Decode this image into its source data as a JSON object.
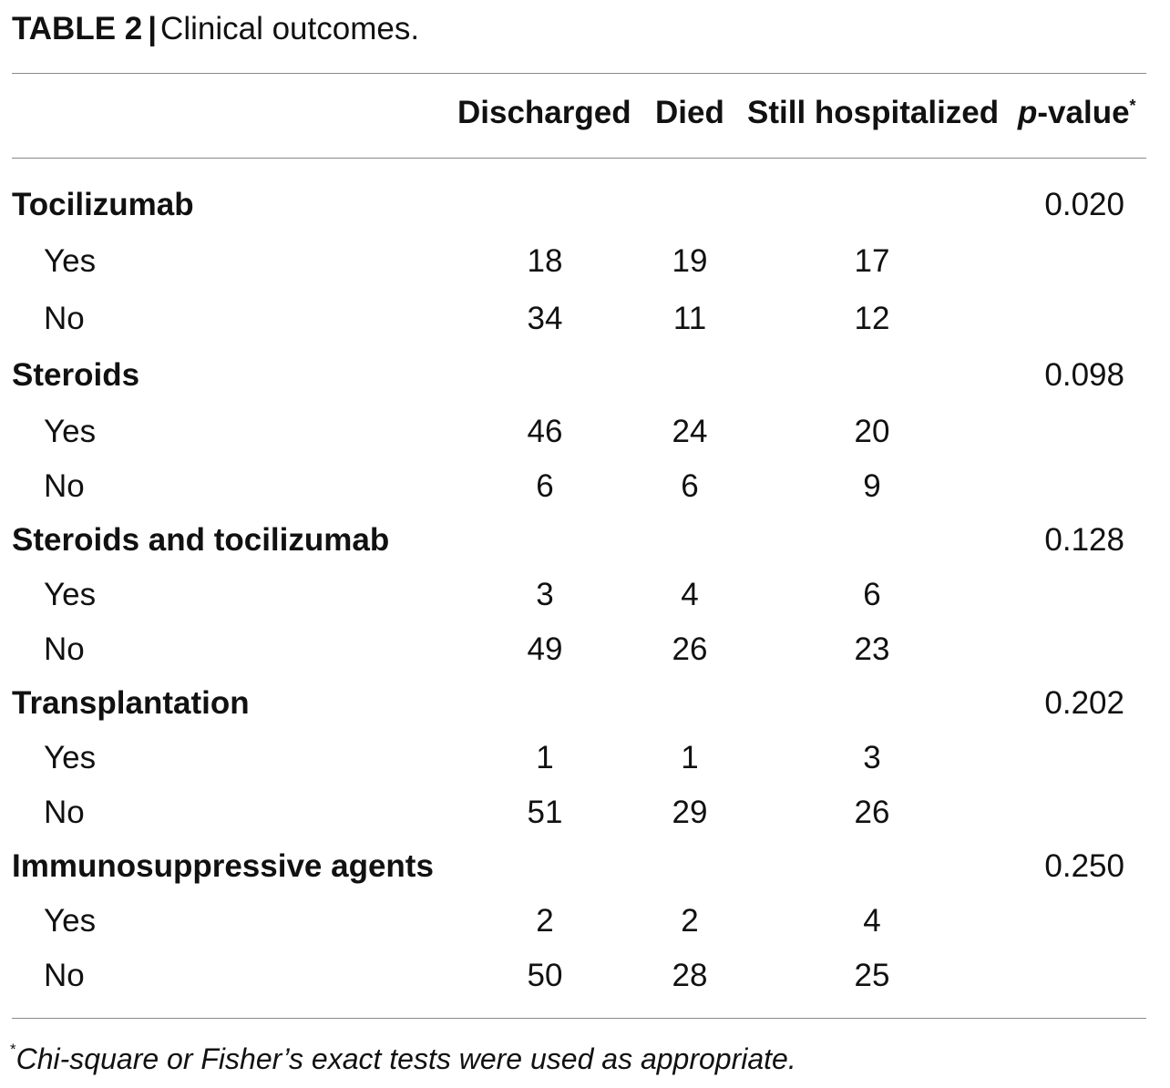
{
  "caption": {
    "label": "TABLE 2",
    "separator": "|",
    "title": "Clinical outcomes."
  },
  "columns": {
    "discharged": "Discharged",
    "died": "Died",
    "still_hospitalized": "Still hospitalized",
    "pvalue_p": "p",
    "pvalue_rest": "-value",
    "pvalue_mark": "*"
  },
  "groups": [
    {
      "name": "Tocilizumab",
      "pvalue": "0.020",
      "rows": [
        {
          "label": "Yes",
          "discharged": "18",
          "died": "19",
          "still": "17"
        },
        {
          "label": "No",
          "discharged": "34",
          "died": "11",
          "still": "12"
        }
      ]
    },
    {
      "name": "Steroids",
      "pvalue": "0.098",
      "rows": [
        {
          "label": "Yes",
          "discharged": "46",
          "died": "24",
          "still": "20"
        },
        {
          "label": "No",
          "discharged": "6",
          "died": "6",
          "still": "9"
        }
      ]
    },
    {
      "name": "Steroids and tocilizumab",
      "pvalue": "0.128",
      "rows": [
        {
          "label": "Yes",
          "discharged": "3",
          "died": "4",
          "still": "6"
        },
        {
          "label": "No",
          "discharged": "49",
          "died": "26",
          "still": "23"
        }
      ]
    },
    {
      "name": "Transplantation",
      "pvalue": "0.202",
      "rows": [
        {
          "label": "Yes",
          "discharged": "1",
          "died": "1",
          "still": "3"
        },
        {
          "label": "No",
          "discharged": "51",
          "died": "29",
          "still": "26"
        }
      ]
    },
    {
      "name": "Immunosuppressive agents",
      "pvalue": "0.250",
      "rows": [
        {
          "label": "Yes",
          "discharged": "2",
          "died": "2",
          "still": "4"
        },
        {
          "label": "No",
          "discharged": "50",
          "died": "28",
          "still": "25"
        }
      ]
    }
  ],
  "footnote": {
    "mark": "*",
    "text": "Chi-square or Fisher’s exact tests were used as appropriate."
  }
}
